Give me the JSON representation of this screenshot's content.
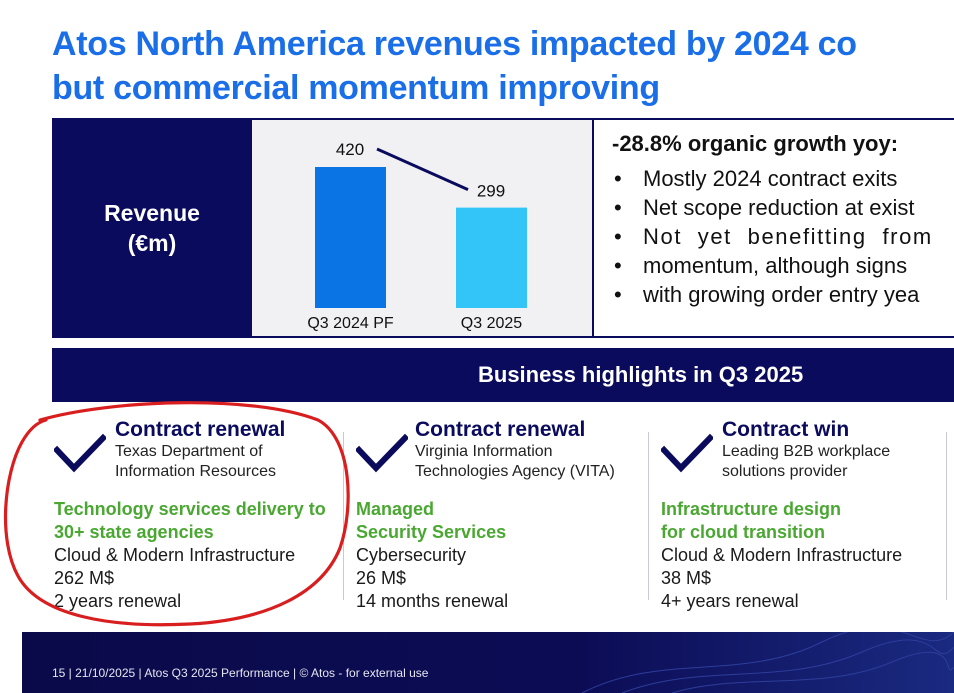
{
  "title": {
    "line1": "Atos North America revenues impacted by 2024 co",
    "line2": "but commercial momentum improving"
  },
  "revenue_label": {
    "line1": "Revenue",
    "line2": "(€m)"
  },
  "chart_data": {
    "type": "bar",
    "categories": [
      "Q3 2024 PF",
      "Q3 2025"
    ],
    "values": [
      420,
      299
    ],
    "value_labels": [
      "420",
      "299"
    ],
    "colors": [
      "#0a74e4",
      "#33c4f8"
    ],
    "trend_line": true,
    "title": "",
    "xlabel": "",
    "ylabel": "",
    "ylim": [
      0,
      420
    ]
  },
  "growth": {
    "heading": "-28.8% organic growth yoy:",
    "bullets": [
      "Mostly 2024 contract exits",
      "Net scope reduction at exist",
      "Not yet benefitting from",
      "momentum, although signs",
      "with growing order entry yea"
    ]
  },
  "highlights": {
    "title": "Business highlights in Q3 2025"
  },
  "deals": [
    {
      "type": "Contract renewal",
      "client_line1": "Texas Department of",
      "client_line2": "Information Resources",
      "service_line1": "Technology services delivery to",
      "service_line2": "30+ state agencies",
      "practice": "Cloud & Modern Infrastructure",
      "value": "262 M$",
      "term": "2 years renewal"
    },
    {
      "type": "Contract renewal",
      "client_line1": "Virginia Information",
      "client_line2": "Technologies Agency (VITA)",
      "service_line1": "Managed",
      "service_line2": "Security Services",
      "practice": "Cybersecurity",
      "value": "26 M$",
      "term": "14 months renewal"
    },
    {
      "type": "Contract win",
      "client_line1": "Leading B2B workplace",
      "client_line2": "solutions provider",
      "service_line1": "Infrastructure design",
      "service_line2": "for cloud transition",
      "practice": "Cloud & Modern Infrastructure",
      "value": "38 M$",
      "term": "4+ years renewal"
    }
  ],
  "footer": {
    "text": "15  | 21/10/2025 | Atos Q3 2025 Performance | © Atos - for external use"
  },
  "colors": {
    "brand_blue": "#1a6ee8",
    "navy": "#0b0b5e",
    "green": "#4aa832",
    "annotation_red": "#d81e1e"
  }
}
